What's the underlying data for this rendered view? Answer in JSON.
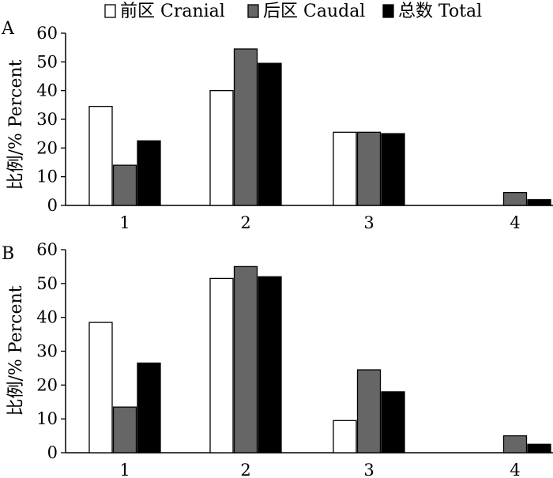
{
  "legend": [
    {
      "label": "前区 Cranial",
      "color": "#ffffff"
    },
    {
      "label": "后区 Caudal",
      "color": "#666666"
    },
    {
      "label": "总数 Total",
      "color": "#000000"
    }
  ],
  "chart_data": [
    {
      "type": "bar",
      "panel": "A",
      "categories": [
        "1",
        "2",
        "3",
        "4"
      ],
      "series": [
        {
          "name": "前区 Cranial",
          "values": [
            34.5,
            40,
            25.5,
            0
          ]
        },
        {
          "name": "后区 Caudal",
          "values": [
            14,
            54.5,
            25.5,
            4.5
          ]
        },
        {
          "name": "总数 Total",
          "values": [
            22.5,
            49.5,
            25,
            2
          ]
        }
      ],
      "ylabel": "比例/% Percent",
      "ylim": [
        0,
        60
      ],
      "yticks": [
        "0",
        "10",
        "20",
        "30",
        "40",
        "50",
        "60"
      ]
    },
    {
      "type": "bar",
      "panel": "B",
      "categories": [
        "1",
        "2",
        "3",
        "4"
      ],
      "series": [
        {
          "name": "前区 Cranial",
          "values": [
            38.5,
            51.5,
            9.5,
            0
          ]
        },
        {
          "name": "后区 Caudal",
          "values": [
            13.5,
            55,
            24.5,
            5
          ]
        },
        {
          "name": "总数 Total",
          "values": [
            26.5,
            52,
            18,
            2.5
          ]
        }
      ],
      "ylabel": "比例/% Percent",
      "ylim": [
        0,
        60
      ],
      "yticks": [
        "0",
        "10",
        "20",
        "30",
        "40",
        "50",
        "60"
      ]
    }
  ]
}
